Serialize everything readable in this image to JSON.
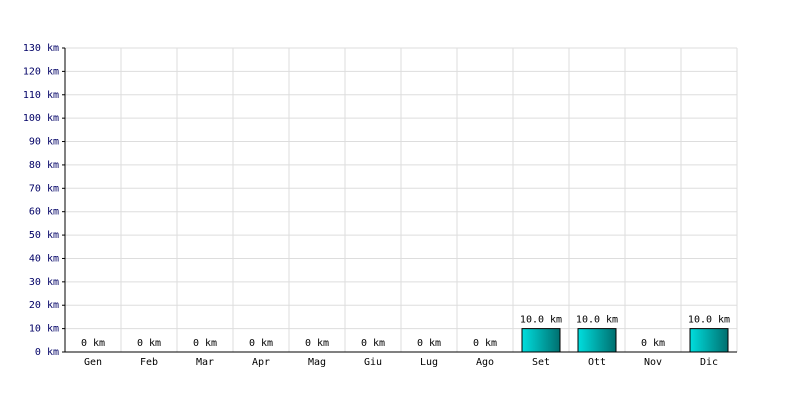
{
  "chart_data": {
    "type": "bar",
    "categories": [
      "Gen",
      "Feb",
      "Mar",
      "Apr",
      "Mag",
      "Giu",
      "Lug",
      "Ago",
      "Set",
      "Ott",
      "Nov",
      "Dic"
    ],
    "values": [
      0,
      0,
      0,
      0,
      0,
      0,
      0,
      0,
      10,
      10,
      0,
      10
    ],
    "value_labels": [
      "0 km",
      "0 km",
      "0 km",
      "0 km",
      "0 km",
      "0 km",
      "0 km",
      "0 km",
      "10.0 km",
      "10.0 km",
      "0 km",
      "10.0 km"
    ],
    "color": "#00dede",
    "ylim": [
      0,
      130
    ],
    "yticks": [
      {
        "value": 0,
        "label": "0 km"
      },
      {
        "value": 10,
        "label": "10 km"
      },
      {
        "value": 20,
        "label": "20 km"
      },
      {
        "value": 30,
        "label": "30 km"
      },
      {
        "value": 40,
        "label": "40 km"
      },
      {
        "value": 50,
        "label": "50 km"
      },
      {
        "value": 60,
        "label": "60 km"
      },
      {
        "value": 70,
        "label": "70 km"
      },
      {
        "value": 80,
        "label": "80 km"
      },
      {
        "value": 90,
        "label": "90 km"
      },
      {
        "value": 100,
        "label": "100 km"
      },
      {
        "value": 110,
        "label": "110 km"
      },
      {
        "value": 120,
        "label": "120 km"
      },
      {
        "value": 130,
        "label": "130 km"
      }
    ],
    "grid": true
  }
}
